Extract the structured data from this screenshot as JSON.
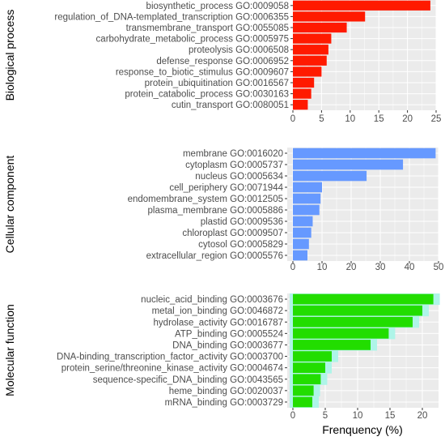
{
  "chart_data": [
    {
      "type": "bar",
      "orientation": "horizontal",
      "panel_label": "Biological process",
      "bar_color": "#ff1a00",
      "categories": [
        "biosynthetic_process GO:0009058",
        "regulation_of_DNA-templated_transcription GO:0006355",
        "transmembrane_transport GO:0055085",
        "carbohydrate_metabolic_process GO:0005975",
        "proteolysis GO:0006508",
        "defense_response GO:0006952",
        "response_to_biotic_stimulus GO:0009607",
        "protein_ubiquitination GO:0016567",
        "protein_catabolic_process GO:0030163",
        "cutin_transport GO:0080051"
      ],
      "values": [
        24.0,
        12.6,
        9.4,
        6.7,
        6.2,
        5.9,
        5.0,
        3.7,
        3.2,
        2.6
      ],
      "xlim": [
        0,
        25
      ],
      "xticks": [
        0,
        5,
        10,
        15,
        20,
        25
      ],
      "grid": true
    },
    {
      "type": "bar",
      "orientation": "horizontal",
      "panel_label": "Cellular component",
      "bar_color": "#6699ff",
      "categories": [
        "membrane GO:0016020",
        "cytoplasm GO:0005737",
        "nucleus GO:0005634",
        "cell_periphery GO:0071944",
        "endomembrane_system GO:0012505",
        "plasma_membrane GO:0005886",
        "plastid GO:0009536",
        "chloroplast GO:0009507",
        "cytosol GO:0005829",
        "extracellular_region GO:0005576"
      ],
      "values": [
        49.0,
        37.8,
        25.3,
        10.0,
        9.5,
        9.1,
        6.8,
        6.3,
        5.5,
        5.0
      ],
      "xlim": [
        0,
        50
      ],
      "xticks": [
        0,
        10,
        20,
        30,
        40,
        50
      ],
      "grid": true
    },
    {
      "type": "bar",
      "orientation": "horizontal",
      "panel_label": "Molecular function",
      "bar_color": "#22dd00",
      "halo_color": "#aef5e8",
      "categories": [
        "nucleic_acid_binding GO:0003676",
        "metal_ion_binding GO:0046872",
        "hydrolase_activity GO:0016787",
        "ATP_binding GO:0005524",
        "DNA_binding GO:0003677",
        "DNA-binding_transcription_factor_activity GO:0003700",
        "protein_serine/threonine_kinase_activity GO:0004674",
        "sequence-specific_DNA_binding GO:0043565",
        "heme_binding GO:0020037",
        "mRNA_binding GO:0003729"
      ],
      "values": [
        21.7,
        20.0,
        18.5,
        14.8,
        12.0,
        6.0,
        5.0,
        4.3,
        3.2,
        3.0
      ],
      "xlim": [
        0,
        22.5
      ],
      "xticks": [
        0,
        5,
        10,
        15,
        20
      ],
      "grid": true
    }
  ],
  "xlabel": "Frenquency (%)",
  "colors": {
    "panel_background": "#ebebeb",
    "grid": "#ffffff",
    "text": "#4d4d4d"
  }
}
